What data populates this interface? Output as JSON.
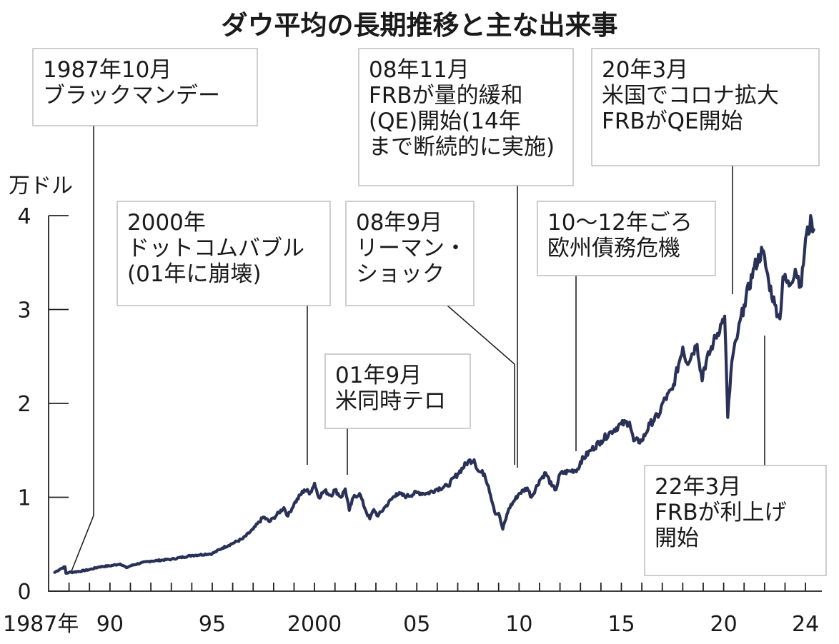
{
  "title": "ダウ平均の長期推移と主な出来事",
  "colors": {
    "line": "#2a3157",
    "text": "#1a1a1a",
    "box_border": "#bdbdbd"
  },
  "chart_data": {
    "type": "line",
    "title": "ダウ平均の長期推移と主な出来事",
    "ylabel": "万ドル",
    "xlabel": "",
    "y_ticks": [
      "0",
      "1",
      "2",
      "3",
      "4"
    ],
    "x_ticks": [
      {
        "year": 1987,
        "label": "1987年"
      },
      {
        "year": 1990,
        "label": "90"
      },
      {
        "year": 1995,
        "label": "95"
      },
      {
        "year": 2000,
        "label": "2000"
      },
      {
        "year": 2005,
        "label": "05"
      },
      {
        "year": 2010,
        "label": "10"
      },
      {
        "year": 2015,
        "label": "15"
      },
      {
        "year": 2020,
        "label": "20"
      },
      {
        "year": 2024,
        "label": "24"
      }
    ],
    "xlim": [
      1987,
      2024.8
    ],
    "ylim": [
      0,
      4
    ],
    "grid": false,
    "series": [
      {
        "values": [
          [
            1987.3,
            0.2
          ],
          [
            1987.6,
            0.24
          ],
          [
            1987.8,
            0.26
          ],
          [
            1987.85,
            0.19
          ],
          [
            1988.0,
            0.2
          ],
          [
            1988.5,
            0.21
          ],
          [
            1989.0,
            0.23
          ],
          [
            1989.5,
            0.26
          ],
          [
            1990.0,
            0.27
          ],
          [
            1990.5,
            0.29
          ],
          [
            1990.8,
            0.25
          ],
          [
            1991.0,
            0.27
          ],
          [
            1991.5,
            0.3
          ],
          [
            1992.0,
            0.32
          ],
          [
            1993.0,
            0.34
          ],
          [
            1994.0,
            0.38
          ],
          [
            1995.0,
            0.4
          ],
          [
            1995.5,
            0.46
          ],
          [
            1996.0,
            0.51
          ],
          [
            1996.5,
            0.56
          ],
          [
            1997.0,
            0.66
          ],
          [
            1997.5,
            0.79
          ],
          [
            1997.8,
            0.74
          ],
          [
            1998.0,
            0.78
          ],
          [
            1998.5,
            0.89
          ],
          [
            1998.7,
            0.8
          ],
          [
            1999.0,
            0.93
          ],
          [
            1999.5,
            1.08
          ],
          [
            1999.8,
            1.05
          ],
          [
            2000.0,
            1.15
          ],
          [
            2000.2,
            1.0
          ],
          [
            2000.5,
            1.07
          ],
          [
            2000.8,
            1.02
          ],
          [
            2001.0,
            1.08
          ],
          [
            2001.3,
            1.0
          ],
          [
            2001.5,
            1.09
          ],
          [
            2001.7,
            0.86
          ],
          [
            2001.9,
            1.0
          ],
          [
            2002.2,
            1.04
          ],
          [
            2002.5,
            0.86
          ],
          [
            2002.7,
            0.77
          ],
          [
            2002.9,
            0.87
          ],
          [
            2003.1,
            0.8
          ],
          [
            2003.5,
            0.91
          ],
          [
            2004.0,
            1.04
          ],
          [
            2004.5,
            1.01
          ],
          [
            2005.0,
            1.05
          ],
          [
            2005.5,
            1.04
          ],
          [
            2006.0,
            1.09
          ],
          [
            2006.5,
            1.12
          ],
          [
            2007.0,
            1.25
          ],
          [
            2007.5,
            1.38
          ],
          [
            2007.8,
            1.4
          ],
          [
            2008.0,
            1.28
          ],
          [
            2008.3,
            1.25
          ],
          [
            2008.5,
            1.12
          ],
          [
            2008.75,
            0.9
          ],
          [
            2008.85,
            0.82
          ],
          [
            2009.0,
            0.83
          ],
          [
            2009.2,
            0.66
          ],
          [
            2009.5,
            0.88
          ],
          [
            2010.0,
            1.04
          ],
          [
            2010.4,
            1.1
          ],
          [
            2010.6,
            1.0
          ],
          [
            2011.0,
            1.18
          ],
          [
            2011.3,
            1.26
          ],
          [
            2011.6,
            1.12
          ],
          [
            2011.8,
            1.08
          ],
          [
            2012.0,
            1.25
          ],
          [
            2012.5,
            1.28
          ],
          [
            2012.9,
            1.3
          ],
          [
            2013.0,
            1.38
          ],
          [
            2013.5,
            1.5
          ],
          [
            2014.0,
            1.6
          ],
          [
            2014.5,
            1.7
          ],
          [
            2015.0,
            1.78
          ],
          [
            2015.4,
            1.8
          ],
          [
            2015.6,
            1.6
          ],
          [
            2016.0,
            1.6
          ],
          [
            2016.4,
            1.78
          ],
          [
            2016.9,
            1.9
          ],
          [
            2017.0,
            2.0
          ],
          [
            2017.5,
            2.15
          ],
          [
            2018.0,
            2.6
          ],
          [
            2018.2,
            2.43
          ],
          [
            2018.7,
            2.63
          ],
          [
            2018.95,
            2.24
          ],
          [
            2019.0,
            2.35
          ],
          [
            2019.5,
            2.65
          ],
          [
            2019.9,
            2.85
          ],
          [
            2020.05,
            2.93
          ],
          [
            2020.2,
            1.85
          ],
          [
            2020.4,
            2.45
          ],
          [
            2020.7,
            2.75
          ],
          [
            2021.0,
            3.05
          ],
          [
            2021.5,
            3.45
          ],
          [
            2021.9,
            3.63
          ],
          [
            2022.2,
            3.3
          ],
          [
            2022.5,
            3.05
          ],
          [
            2022.75,
            2.9
          ],
          [
            2022.9,
            3.35
          ],
          [
            2023.2,
            3.25
          ],
          [
            2023.5,
            3.43
          ],
          [
            2023.8,
            3.25
          ],
          [
            2024.0,
            3.75
          ],
          [
            2024.3,
            3.95
          ],
          [
            2024.4,
            3.85
          ]
        ]
      }
    ]
  },
  "annotations": [
    {
      "lines": [
        "1987年10月",
        "ブラックマンデー"
      ]
    },
    {
      "lines": [
        "2000年",
        "ドットコムバブル",
        "(01年に崩壊)"
      ]
    },
    {
      "lines": [
        "01年9月",
        "米同時テロ"
      ]
    },
    {
      "lines": [
        "08年11月",
        "FRBが量的緩和",
        "(QE)開始(14年",
        "まで断続的に実施)"
      ]
    },
    {
      "lines": [
        "08年9月",
        "リーマン・",
        "ショック"
      ]
    },
    {
      "lines": [
        "10〜12年ごろ",
        "欧州債務危機"
      ]
    },
    {
      "lines": [
        "20年3月",
        "米国でコロナ拡大",
        "FRBがQE開始"
      ]
    },
    {
      "lines": [
        "22年3月",
        "FRBが利上げ",
        "開始"
      ]
    }
  ]
}
